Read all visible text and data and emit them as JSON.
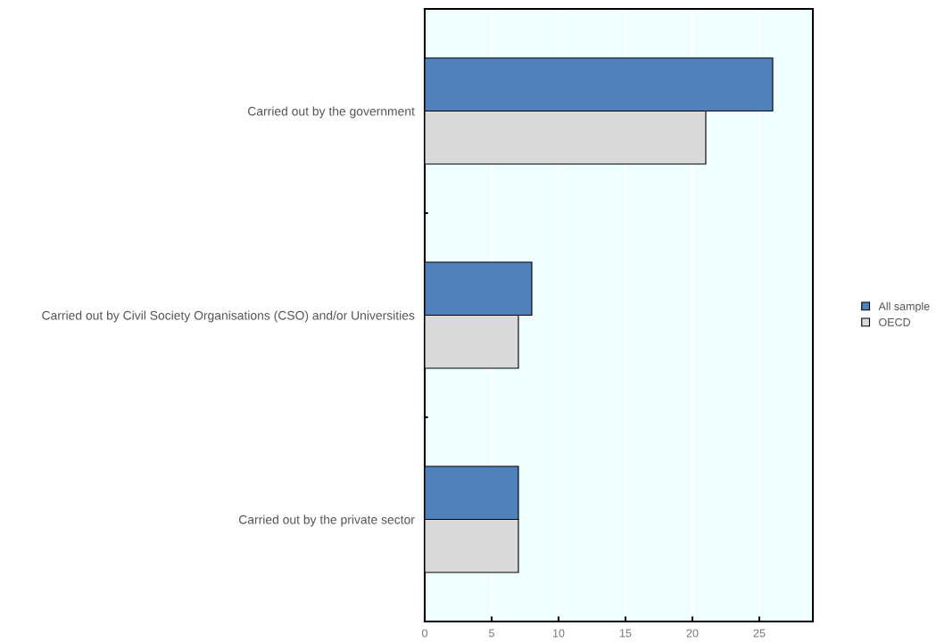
{
  "chart_data": {
    "type": "bar",
    "orientation": "horizontal",
    "categories": [
      "Carried out by the government",
      "Carried out by Civil Society Organisations (CSO) and/or Universities",
      "Carried out by the private sector"
    ],
    "series": [
      {
        "name": "All sample",
        "color": "#4f81bd",
        "values": [
          26,
          8,
          7
        ]
      },
      {
        "name": "OECD",
        "color": "#d9d9d9",
        "values": [
          21,
          7,
          7
        ]
      }
    ],
    "xlim": [
      0,
      29
    ],
    "xticks": [
      0,
      5,
      10,
      15,
      20,
      25
    ],
    "grid": "x",
    "legend": "right"
  }
}
